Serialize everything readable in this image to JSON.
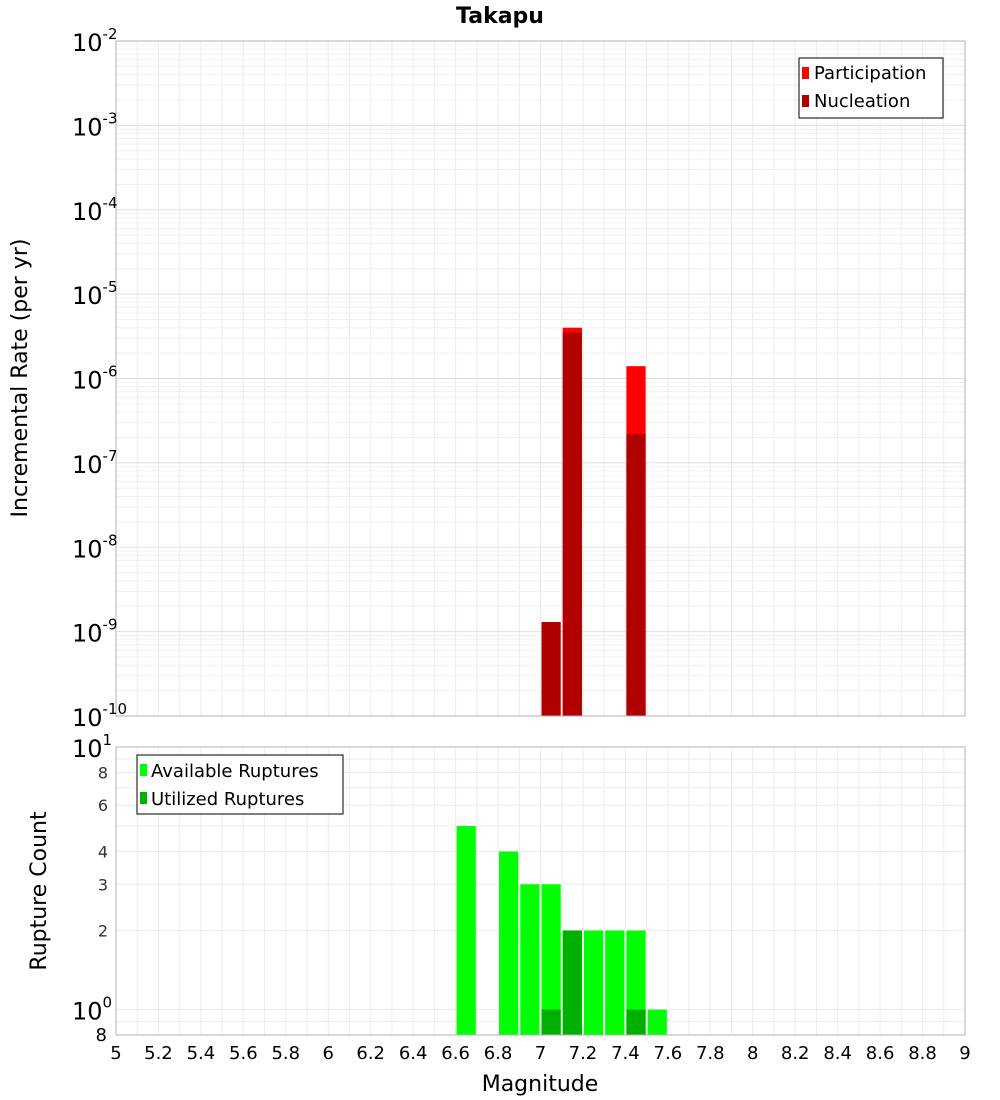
{
  "chart_data": [
    {
      "type": "bar",
      "title": "Takapu",
      "ylabel": "Incremental Rate (per yr)",
      "yscale": "log",
      "ylim": [
        1e-10,
        0.01
      ],
      "xlim": [
        5,
        9
      ],
      "y_tick_labels": [
        {
          "base": "10",
          "exp": "-2"
        },
        {
          "base": "10",
          "exp": "-3"
        },
        {
          "base": "10",
          "exp": "-4"
        },
        {
          "base": "10",
          "exp": "-5"
        },
        {
          "base": "10",
          "exp": "-6"
        },
        {
          "base": "10",
          "exp": "-7"
        },
        {
          "base": "10",
          "exp": "-8"
        },
        {
          "base": "10",
          "exp": "-9"
        },
        {
          "base": "10",
          "exp": "-10"
        }
      ],
      "legend_position": "top-right",
      "series": [
        {
          "name": "Participation",
          "color": "#ff0000",
          "points": [
            {
              "x": 7.15,
              "y": 4e-06
            },
            {
              "x": 7.45,
              "y": 1.4e-06
            }
          ]
        },
        {
          "name": "Nucleation",
          "color": "#b00000",
          "points": [
            {
              "x": 7.05,
              "y": 1.3e-09
            },
            {
              "x": 7.15,
              "y": 3.5e-06
            },
            {
              "x": 7.45,
              "y": 2.2e-07
            }
          ]
        }
      ]
    },
    {
      "type": "bar",
      "ylabel": "Rupture Count",
      "xlabel": "Magnitude",
      "yscale": "log",
      "ylim": [
        0.8,
        10
      ],
      "xlim": [
        5,
        9
      ],
      "y_major_tick_labels": [
        {
          "base": "10",
          "exp": "1"
        },
        {
          "base": "10",
          "exp": "0"
        }
      ],
      "y_minor_tick_labels": [
        "8",
        "6",
        "4",
        "3",
        "2",
        "8"
      ],
      "x_tick_labels": [
        "5",
        "5.2",
        "5.4",
        "5.6",
        "5.8",
        "6",
        "6.2",
        "6.4",
        "6.6",
        "6.8",
        "7",
        "7.2",
        "7.4",
        "7.6",
        "7.8",
        "8",
        "8.2",
        "8.4",
        "8.6",
        "8.8",
        "9"
      ],
      "legend_position": "top-left",
      "series": [
        {
          "name": "Available Ruptures",
          "color": "#00ff00",
          "points": [
            {
              "x": 6.65,
              "y": 5
            },
            {
              "x": 6.85,
              "y": 4
            },
            {
              "x": 6.95,
              "y": 3
            },
            {
              "x": 7.05,
              "y": 3
            },
            {
              "x": 7.15,
              "y": 2
            },
            {
              "x": 7.25,
              "y": 2
            },
            {
              "x": 7.35,
              "y": 2
            },
            {
              "x": 7.45,
              "y": 2
            },
            {
              "x": 7.55,
              "y": 1
            }
          ]
        },
        {
          "name": "Utilized Ruptures",
          "color": "#00b000",
          "points": [
            {
              "x": 7.05,
              "y": 1
            },
            {
              "x": 7.15,
              "y": 2
            },
            {
              "x": 7.45,
              "y": 1
            }
          ]
        }
      ]
    }
  ]
}
